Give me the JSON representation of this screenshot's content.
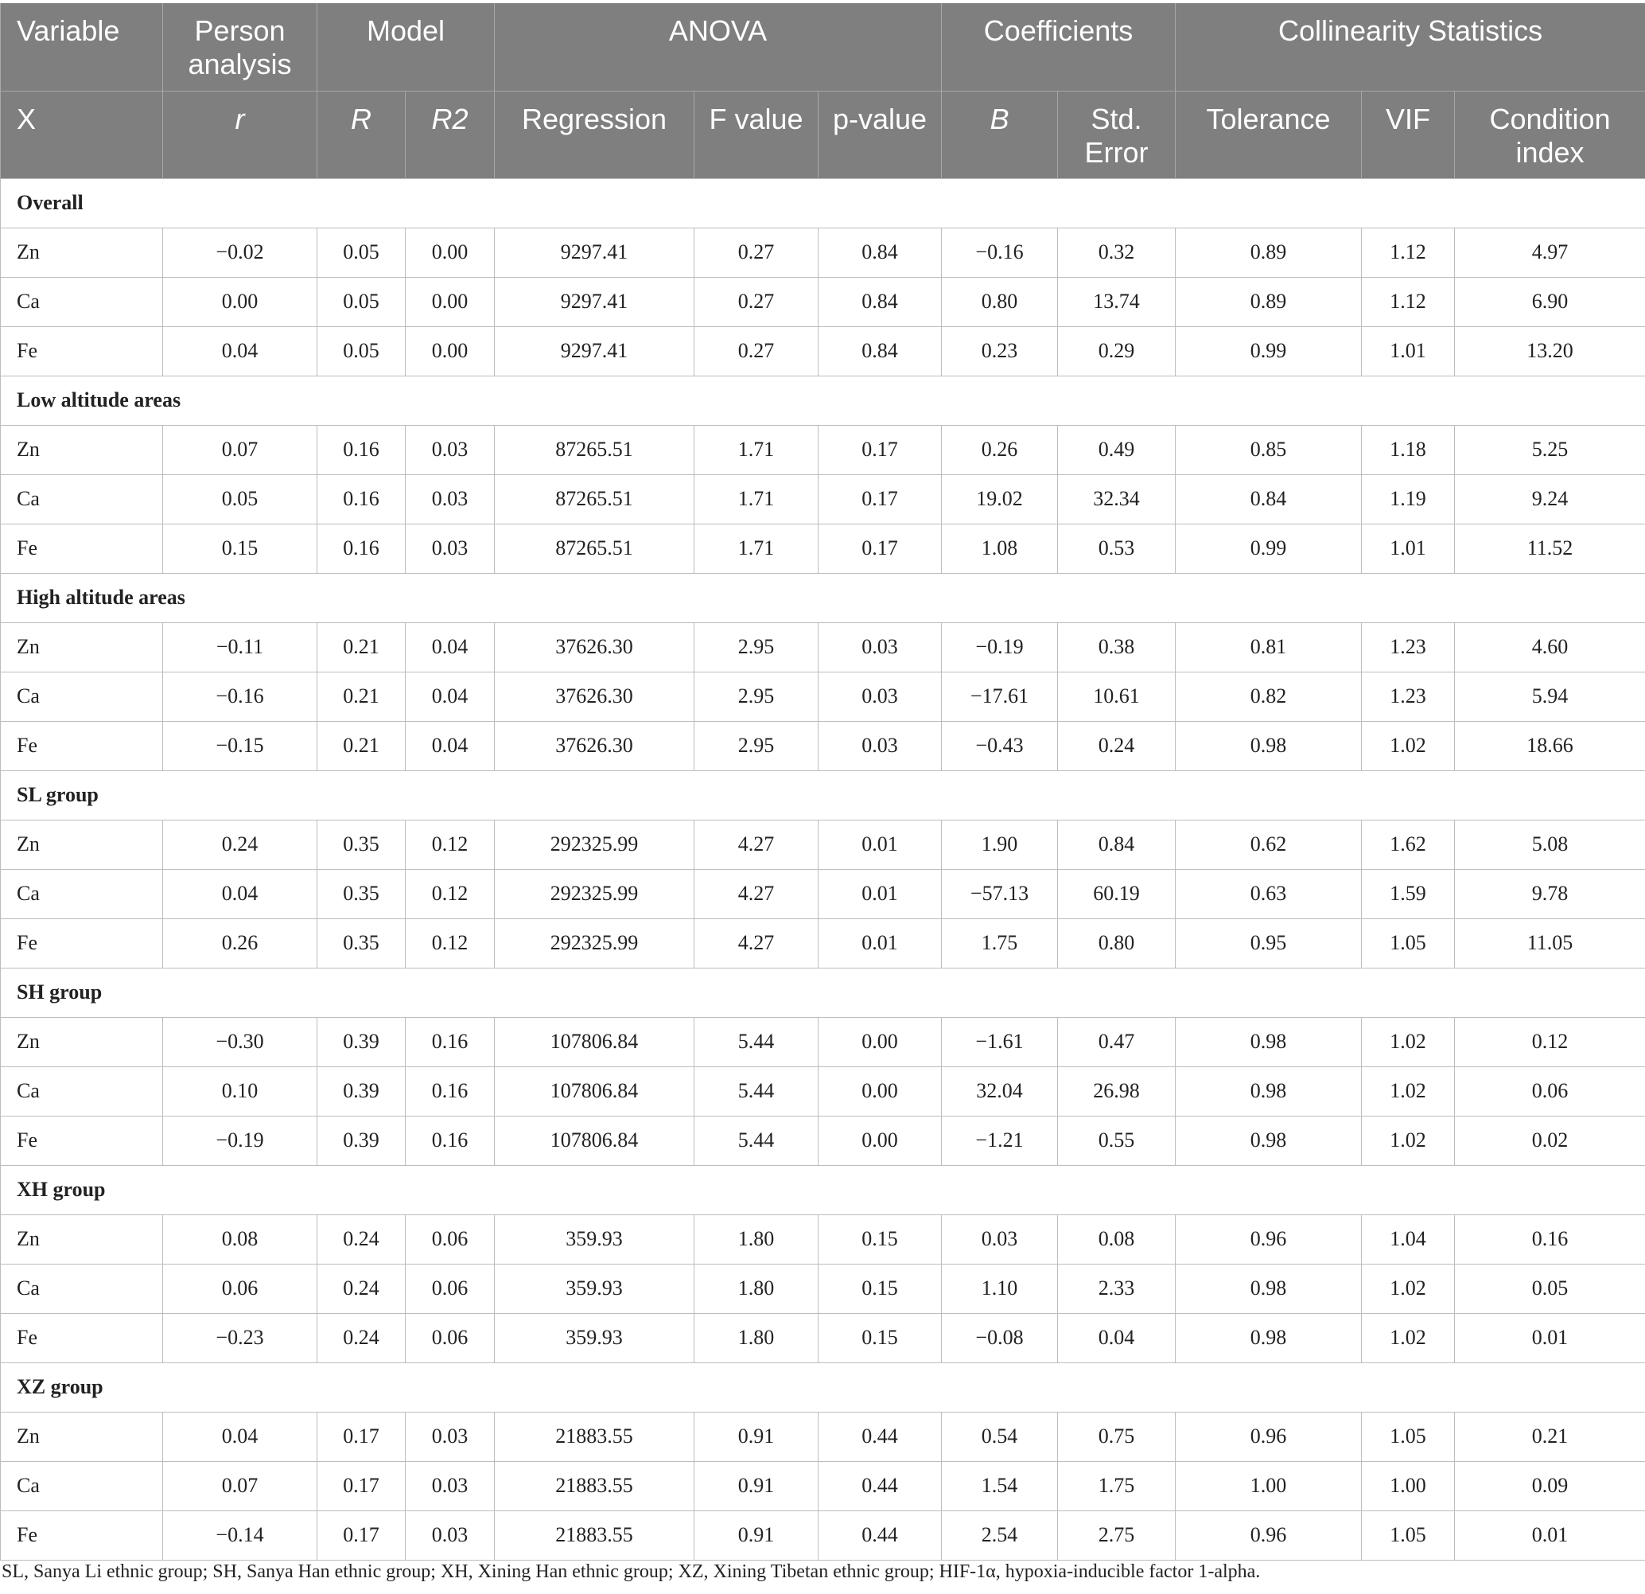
{
  "header": {
    "row1": [
      "Variable",
      "Person analysis",
      "Model",
      "ANOVA",
      "Coefficients",
      "Collinearity Statistics"
    ],
    "row2": [
      "X",
      "r",
      "R",
      "R2",
      "Regression",
      "F value",
      "p-value",
      "B",
      "Std. Error",
      "Tolerance",
      "VIF",
      "Condition index"
    ]
  },
  "sections": [
    {
      "title": "Overall",
      "rows": [
        {
          "var": "Zn",
          "cells": [
            "−0.02",
            "0.05",
            "0.00",
            "9297.41",
            "0.27",
            "0.84",
            "−0.16",
            "0.32",
            "0.89",
            "1.12",
            "4.97"
          ]
        },
        {
          "var": "Ca",
          "cells": [
            "0.00",
            "0.05",
            "0.00",
            "9297.41",
            "0.27",
            "0.84",
            "0.80",
            "13.74",
            "0.89",
            "1.12",
            "6.90"
          ]
        },
        {
          "var": "Fe",
          "cells": [
            "0.04",
            "0.05",
            "0.00",
            "9297.41",
            "0.27",
            "0.84",
            "0.23",
            "0.29",
            "0.99",
            "1.01",
            "13.20"
          ]
        }
      ]
    },
    {
      "title": "Low altitude areas",
      "rows": [
        {
          "var": "Zn",
          "cells": [
            "0.07",
            "0.16",
            "0.03",
            "87265.51",
            "1.71",
            "0.17",
            "0.26",
            "0.49",
            "0.85",
            "1.18",
            "5.25"
          ]
        },
        {
          "var": "Ca",
          "cells": [
            "0.05",
            "0.16",
            "0.03",
            "87265.51",
            "1.71",
            "0.17",
            "19.02",
            "32.34",
            "0.84",
            "1.19",
            "9.24"
          ]
        },
        {
          "var": "Fe",
          "cells": [
            "0.15",
            "0.16",
            "0.03",
            "87265.51",
            "1.71",
            "0.17",
            "1.08",
            "0.53",
            "0.99",
            "1.01",
            "11.52"
          ]
        }
      ]
    },
    {
      "title": "High altitude areas",
      "rows": [
        {
          "var": "Zn",
          "cells": [
            "−0.11",
            "0.21",
            "0.04",
            "37626.30",
            "2.95",
            "0.03",
            "−0.19",
            "0.38",
            "0.81",
            "1.23",
            "4.60"
          ]
        },
        {
          "var": "Ca",
          "cells": [
            "−0.16",
            "0.21",
            "0.04",
            "37626.30",
            "2.95",
            "0.03",
            "−17.61",
            "10.61",
            "0.82",
            "1.23",
            "5.94"
          ]
        },
        {
          "var": "Fe",
          "cells": [
            "−0.15",
            "0.21",
            "0.04",
            "37626.30",
            "2.95",
            "0.03",
            "−0.43",
            "0.24",
            "0.98",
            "1.02",
            "18.66"
          ]
        }
      ]
    },
    {
      "title": "SL group",
      "rows": [
        {
          "var": "Zn",
          "cells": [
            "0.24",
            "0.35",
            "0.12",
            "292325.99",
            "4.27",
            "0.01",
            "1.90",
            "0.84",
            "0.62",
            "1.62",
            "5.08"
          ]
        },
        {
          "var": "Ca",
          "cells": [
            "0.04",
            "0.35",
            "0.12",
            "292325.99",
            "4.27",
            "0.01",
            "−57.13",
            "60.19",
            "0.63",
            "1.59",
            "9.78"
          ]
        },
        {
          "var": "Fe",
          "cells": [
            "0.26",
            "0.35",
            "0.12",
            "292325.99",
            "4.27",
            "0.01",
            "1.75",
            "0.80",
            "0.95",
            "1.05",
            "11.05"
          ]
        }
      ]
    },
    {
      "title": "SH group",
      "rows": [
        {
          "var": "Zn",
          "cells": [
            "−0.30",
            "0.39",
            "0.16",
            "107806.84",
            "5.44",
            "0.00",
            "−1.61",
            "0.47",
            "0.98",
            "1.02",
            "0.12"
          ]
        },
        {
          "var": "Ca",
          "cells": [
            "0.10",
            "0.39",
            "0.16",
            "107806.84",
            "5.44",
            "0.00",
            "32.04",
            "26.98",
            "0.98",
            "1.02",
            "0.06"
          ]
        },
        {
          "var": "Fe",
          "cells": [
            "−0.19",
            "0.39",
            "0.16",
            "107806.84",
            "5.44",
            "0.00",
            "−1.21",
            "0.55",
            "0.98",
            "1.02",
            "0.02"
          ]
        }
      ]
    },
    {
      "title": "XH group",
      "rows": [
        {
          "var": "Zn",
          "cells": [
            "0.08",
            "0.24",
            "0.06",
            "359.93",
            "1.80",
            "0.15",
            "0.03",
            "0.08",
            "0.96",
            "1.04",
            "0.16"
          ]
        },
        {
          "var": "Ca",
          "cells": [
            "0.06",
            "0.24",
            "0.06",
            "359.93",
            "1.80",
            "0.15",
            "1.10",
            "2.33",
            "0.98",
            "1.02",
            "0.05"
          ]
        },
        {
          "var": "Fe",
          "cells": [
            "−0.23",
            "0.24",
            "0.06",
            "359.93",
            "1.80",
            "0.15",
            "−0.08",
            "0.04",
            "0.98",
            "1.02",
            "0.01"
          ]
        }
      ]
    },
    {
      "title": "XZ group",
      "rows": [
        {
          "var": "Zn",
          "cells": [
            "0.04",
            "0.17",
            "0.03",
            "21883.55",
            "0.91",
            "0.44",
            "0.54",
            "0.75",
            "0.96",
            "1.05",
            "0.21"
          ]
        },
        {
          "var": "Ca",
          "cells": [
            "0.07",
            "0.17",
            "0.03",
            "21883.55",
            "0.91",
            "0.44",
            "1.54",
            "1.75",
            "1.00",
            "1.00",
            "0.09"
          ]
        },
        {
          "var": "Fe",
          "cells": [
            "−0.14",
            "0.17",
            "0.03",
            "21883.55",
            "0.91",
            "0.44",
            "2.54",
            "2.75",
            "0.96",
            "1.05",
            "0.01"
          ]
        }
      ]
    }
  ],
  "footnote": "SL, Sanya Li ethnic group; SH, Sanya Han ethnic group; XH, Xining Han ethnic group; XZ, Xining Tibetan ethnic group; HIF-1α, hypoxia-inducible factor 1-alpha."
}
